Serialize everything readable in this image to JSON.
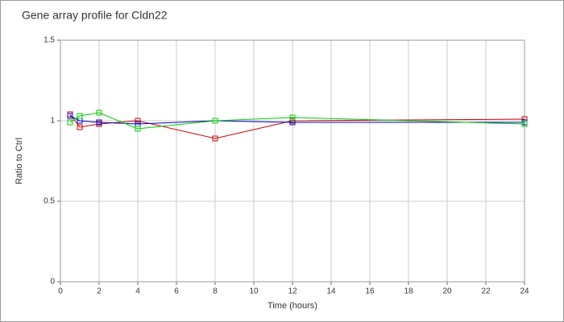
{
  "chart_data": {
    "type": "line",
    "title": "Gene array profile for Cldn22",
    "x_label": "Time (hours)",
    "y_label": "Ratio to Ctrl",
    "x": [
      0.5,
      1,
      2,
      4,
      8,
      12,
      24
    ],
    "series": [
      {
        "color": "#cc0000",
        "values": [
          1.04,
          0.96,
          0.98,
          1.0,
          0.89,
          1.0,
          1.01
        ]
      },
      {
        "color": "#0000cc",
        "values": [
          1.03,
          1.0,
          0.99,
          0.98,
          1.0,
          0.99,
          0.99
        ]
      },
      {
        "color": "#00cc00",
        "values": [
          0.99,
          1.03,
          1.05,
          0.95,
          1.0,
          1.02,
          0.98
        ]
      }
    ],
    "xlim": [
      0,
      24
    ],
    "xticks": [
      0,
      2,
      4,
      6,
      8,
      10,
      12,
      14,
      16,
      18,
      20,
      22,
      24
    ],
    "ylim": [
      0,
      1.5
    ],
    "yticks": [
      0,
      0.5,
      1,
      1.5
    ],
    "grid": true
  }
}
